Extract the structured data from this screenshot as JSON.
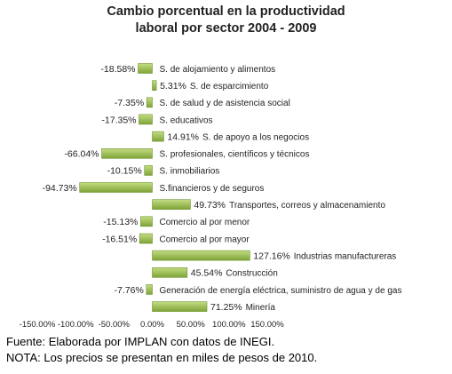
{
  "title": [
    "Cambio porcentual en la productividad",
    "laboral por sector 2004 - 2009"
  ],
  "colors": {
    "bar_light": "#c4dd83",
    "bar_dark": "#7ea337",
    "bar_border": "#6f9430",
    "text": "#222222"
  },
  "chart_data": {
    "type": "bar",
    "orientation": "horizontal",
    "title": "Cambio porcentual en la productividad laboral por sector 2004 - 2009",
    "categories": [
      "S. de alojamiento y alimentos",
      "S. de esparcimiento",
      "S. de salud y de asistencia social",
      "S. educativos",
      "S. de apoyo a los negocios",
      "S. profesionales, científicos y técnicos",
      "S. inmobiliarios",
      "S.financieros y de seguros",
      "Transportes, correos y almacenamiento",
      "Comercio al por menor",
      "Comercio al por mayor",
      "Industrias manufactureras",
      "Construcción",
      "Generación de energía eléctrica, suministro de agua y de gas",
      "Minería"
    ],
    "values": [
      -18.58,
      5.31,
      -7.35,
      -17.35,
      14.91,
      -66.04,
      -10.15,
      -94.73,
      49.73,
      -15.13,
      -16.51,
      127.16,
      45.54,
      -7.76,
      71.25
    ],
    "value_labels": [
      "-18.58%",
      "5.31%",
      "-7.35%",
      "-17.35%",
      "14.91%",
      "-66.04%",
      "-10.15%",
      "-94.73%",
      "49.73%",
      "-15.13%",
      "-16.51%",
      "127.16%",
      "45.54%",
      "-7.76%",
      "71.25%"
    ],
    "xlim": [
      -150,
      150
    ],
    "x_ticks": [
      -150,
      -100,
      -50,
      0,
      50,
      100,
      150
    ],
    "x_tick_labels": [
      "-150.00%",
      "-100.00%",
      "-50.00%",
      "0.00%",
      "50.00%",
      "100.00%",
      "150.00%"
    ],
    "xlabel": "",
    "ylabel": "",
    "grid": false,
    "legend": "none"
  },
  "notes": [
    "Fuente: Elaborada por IMPLAN con datos de INEGI.",
    "NOTA: Los precios se presentan en miles de pesos de 2010."
  ]
}
